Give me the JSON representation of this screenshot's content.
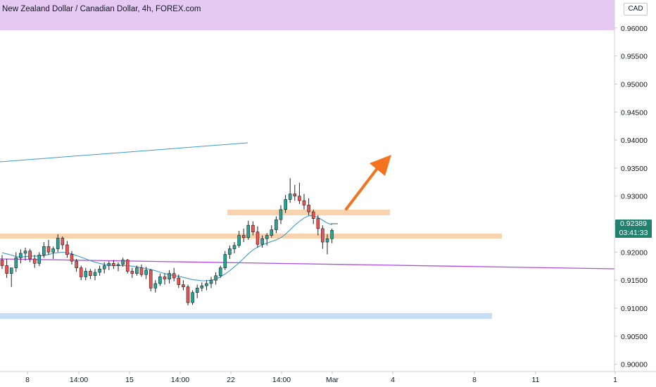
{
  "title": "New Zealand Dollar / Canadian Dollar, 4h, FOREX.com",
  "currency": "CAD",
  "last_price": "0.92389",
  "countdown": "03:41:33",
  "colors": {
    "up": "#26a69a",
    "down": "#ef5350",
    "candle_border": "#222222",
    "resistance_zone": "#e5c9f3",
    "sr_zone": "#f9d3ad",
    "support_zone": "#c7dcf5",
    "ma_line": "#3d9ad1",
    "trend_line": "#b04ce0",
    "upper_line": "#3d9ad1",
    "arrow": "#f5731e",
    "price_badge": "#22806e"
  },
  "chart_data": {
    "type": "candlestick",
    "title": "New Zealand Dollar / Canadian Dollar, 4h, FOREX.com",
    "ylim": [
      0.8987,
      0.965
    ],
    "y_ticks": [
      "0.96000",
      "0.95500",
      "0.95000",
      "0.94500",
      "0.94000",
      "0.93500",
      "0.93000",
      "0.92500",
      "0.92000",
      "0.91500",
      "0.91000",
      "0.90500",
      "0.90000"
    ],
    "x_ticks": [
      "8",
      "14:00",
      "15",
      "14:00",
      "22",
      "14:00",
      "Mar",
      "4",
      "8",
      "11",
      "1"
    ],
    "candles": [
      [
        0.9186,
        0.9195,
        0.917,
        0.9176
      ],
      [
        0.9176,
        0.9188,
        0.9154,
        0.9162
      ],
      [
        0.9162,
        0.917,
        0.9138,
        0.9172
      ],
      [
        0.9172,
        0.92,
        0.9165,
        0.919
      ],
      [
        0.919,
        0.9205,
        0.918,
        0.9198
      ],
      [
        0.9198,
        0.9208,
        0.9185,
        0.9202
      ],
      [
        0.9202,
        0.9206,
        0.9182,
        0.9188
      ],
      [
        0.9188,
        0.9195,
        0.9172,
        0.918
      ],
      [
        0.918,
        0.92,
        0.9175,
        0.9195
      ],
      [
        0.9195,
        0.9218,
        0.919,
        0.921
      ],
      [
        0.921,
        0.9222,
        0.9195,
        0.92
      ],
      [
        0.92,
        0.921,
        0.9188,
        0.9206
      ],
      [
        0.9206,
        0.9232,
        0.92,
        0.9225
      ],
      [
        0.9225,
        0.9228,
        0.9205,
        0.9213
      ],
      [
        0.9213,
        0.922,
        0.919,
        0.9196
      ],
      [
        0.9196,
        0.9202,
        0.9178,
        0.9184
      ],
      [
        0.9184,
        0.9188,
        0.9165,
        0.9172
      ],
      [
        0.9172,
        0.9176,
        0.915,
        0.9156
      ],
      [
        0.9156,
        0.9172,
        0.915,
        0.9166
      ],
      [
        0.9166,
        0.917,
        0.9152,
        0.9158
      ],
      [
        0.9158,
        0.917,
        0.915,
        0.9164
      ],
      [
        0.9164,
        0.9176,
        0.9158,
        0.917
      ],
      [
        0.917,
        0.9182,
        0.9162,
        0.9176
      ],
      [
        0.9176,
        0.9184,
        0.9168,
        0.918
      ],
      [
        0.918,
        0.9186,
        0.917,
        0.9176
      ],
      [
        0.9176,
        0.9182,
        0.9166,
        0.9178
      ],
      [
        0.9178,
        0.919,
        0.9174,
        0.9186
      ],
      [
        0.9186,
        0.9188,
        0.9162,
        0.9166
      ],
      [
        0.9166,
        0.9172,
        0.9154,
        0.9162
      ],
      [
        0.9162,
        0.9176,
        0.9158,
        0.9172
      ],
      [
        0.9172,
        0.9178,
        0.9156,
        0.916
      ],
      [
        0.916,
        0.9174,
        0.9152,
        0.9168
      ],
      [
        0.9168,
        0.917,
        0.913,
        0.9136
      ],
      [
        0.9136,
        0.915,
        0.9128,
        0.9144
      ],
      [
        0.9144,
        0.9162,
        0.914,
        0.9156
      ],
      [
        0.9156,
        0.9162,
        0.9142,
        0.9152
      ],
      [
        0.9152,
        0.9168,
        0.9144,
        0.9162
      ],
      [
        0.9162,
        0.9172,
        0.9148,
        0.9154
      ],
      [
        0.9154,
        0.916,
        0.9136,
        0.9142
      ],
      [
        0.9142,
        0.915,
        0.9132,
        0.9138
      ],
      [
        0.9138,
        0.9142,
        0.9105,
        0.911
      ],
      [
        0.911,
        0.9132,
        0.9106,
        0.9128
      ],
      [
        0.9128,
        0.9142,
        0.9118,
        0.9136
      ],
      [
        0.9136,
        0.9146,
        0.913,
        0.914
      ],
      [
        0.914,
        0.915,
        0.9132,
        0.9144
      ],
      [
        0.9144,
        0.9156,
        0.9136,
        0.915
      ],
      [
        0.915,
        0.9164,
        0.9142,
        0.9158
      ],
      [
        0.9158,
        0.9176,
        0.9154,
        0.9172
      ],
      [
        0.9172,
        0.9202,
        0.9168,
        0.9196
      ],
      [
        0.9196,
        0.9212,
        0.9188,
        0.9206
      ],
      [
        0.9206,
        0.9218,
        0.9198,
        0.9212
      ],
      [
        0.9212,
        0.9238,
        0.9208,
        0.923
      ],
      [
        0.923,
        0.9242,
        0.9218,
        0.9226
      ],
      [
        0.9226,
        0.9256,
        0.9222,
        0.9248
      ],
      [
        0.9248,
        0.9255,
        0.923,
        0.9236
      ],
      [
        0.9236,
        0.9246,
        0.9208,
        0.9214
      ],
      [
        0.9214,
        0.923,
        0.9208,
        0.9224
      ],
      [
        0.9224,
        0.9234,
        0.9212,
        0.923
      ],
      [
        0.923,
        0.9248,
        0.9226,
        0.924
      ],
      [
        0.924,
        0.9264,
        0.9234,
        0.9258
      ],
      [
        0.9258,
        0.9284,
        0.925,
        0.9276
      ],
      [
        0.9276,
        0.9302,
        0.927,
        0.9294
      ],
      [
        0.9294,
        0.9332,
        0.9288,
        0.9304
      ],
      [
        0.9304,
        0.932,
        0.9292,
        0.93
      ],
      [
        0.93,
        0.9324,
        0.9286,
        0.9292
      ],
      [
        0.9292,
        0.9304,
        0.9276,
        0.9284
      ],
      [
        0.9284,
        0.9296,
        0.9266,
        0.9272
      ],
      [
        0.9272,
        0.9276,
        0.925,
        0.926
      ],
      [
        0.926,
        0.9266,
        0.923,
        0.9242
      ],
      [
        0.9242,
        0.9248,
        0.9206,
        0.9218
      ],
      [
        0.9218,
        0.9232,
        0.9196,
        0.9224
      ],
      [
        0.9224,
        0.9242,
        0.9216,
        0.92389
      ]
    ],
    "ma_values": [
      0.9199,
      0.9197,
      0.9195,
      0.9192,
      0.9191,
      0.9192,
      0.9193,
      0.9193,
      0.9193,
      0.9194,
      0.9196,
      0.9198,
      0.9199,
      0.92,
      0.9199,
      0.9197,
      0.9194,
      0.9191,
      0.9188,
      0.9185,
      0.9182,
      0.918,
      0.9178,
      0.9177,
      0.9176,
      0.9176,
      0.9176,
      0.9176,
      0.9175,
      0.9174,
      0.9172,
      0.9171,
      0.9169,
      0.9167,
      0.9164,
      0.9162,
      0.916,
      0.9158,
      0.9157,
      0.9155,
      0.9153,
      0.9151,
      0.915,
      0.9149,
      0.9149,
      0.915,
      0.9152,
      0.9156,
      0.9161,
      0.9167,
      0.9174,
      0.9181,
      0.9189,
      0.9197,
      0.9204,
      0.9209,
      0.9213,
      0.9216,
      0.9219,
      0.9222,
      0.9226,
      0.9232,
      0.924,
      0.9248,
      0.9255,
      0.9261,
      0.9265,
      0.9265,
      0.9262,
      0.9257,
      0.9252,
      0.9249
    ]
  }
}
